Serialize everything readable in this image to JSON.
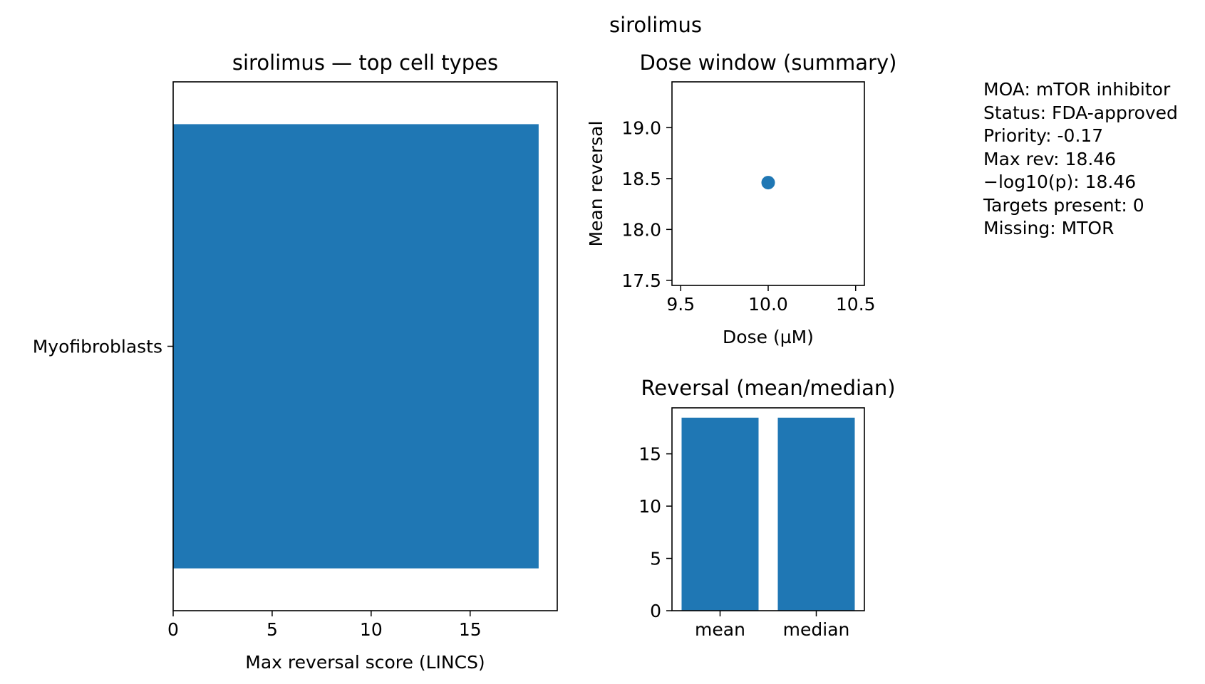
{
  "suptitle": "sirolimus",
  "chart_data": [
    {
      "type": "bar",
      "orientation": "horizontal",
      "title": "sirolimus — top cell types",
      "categories": [
        "Myofibroblasts"
      ],
      "values": [
        18.46
      ],
      "xlabel": "Max reversal score (LINCS)",
      "ylabel": "",
      "xlim": [
        0,
        19.4
      ],
      "xticks": [
        0,
        5,
        10,
        15
      ],
      "color": "#1f77b4"
    },
    {
      "type": "scatter",
      "title": "Dose window (summary)",
      "x": [
        10.0
      ],
      "y": [
        18.46
      ],
      "xlabel": "Dose (µM)",
      "ylabel": "Mean reversal",
      "xlim": [
        9.45,
        10.55
      ],
      "ylim": [
        17.45,
        19.45
      ],
      "xticks": [
        9.5,
        10.0,
        10.5
      ],
      "xtick_labels": [
        "9.5",
        "10.0",
        "10.5"
      ],
      "yticks": [
        17.5,
        18.0,
        18.5,
        19.0
      ],
      "ytick_labels": [
        "17.5",
        "18.0",
        "18.5",
        "19.0"
      ],
      "color": "#1f77b4"
    },
    {
      "type": "bar",
      "title": "Reversal (mean/median)",
      "categories": [
        "mean",
        "median"
      ],
      "values": [
        18.46,
        18.46
      ],
      "xlabel": "",
      "ylabel": "",
      "ylim": [
        0,
        19.4
      ],
      "yticks": [
        0,
        5,
        10,
        15
      ],
      "color": "#1f77b4"
    }
  ],
  "info": {
    "moa": "MOA: mTOR inhibitor",
    "status": "Status: FDA-approved",
    "priority": "Priority: -0.17",
    "max_rev": "Max rev: 18.46",
    "neglog_p": "−log10(p): 18.46",
    "targets_present": "Targets present: 0",
    "missing": "Missing: MTOR"
  }
}
